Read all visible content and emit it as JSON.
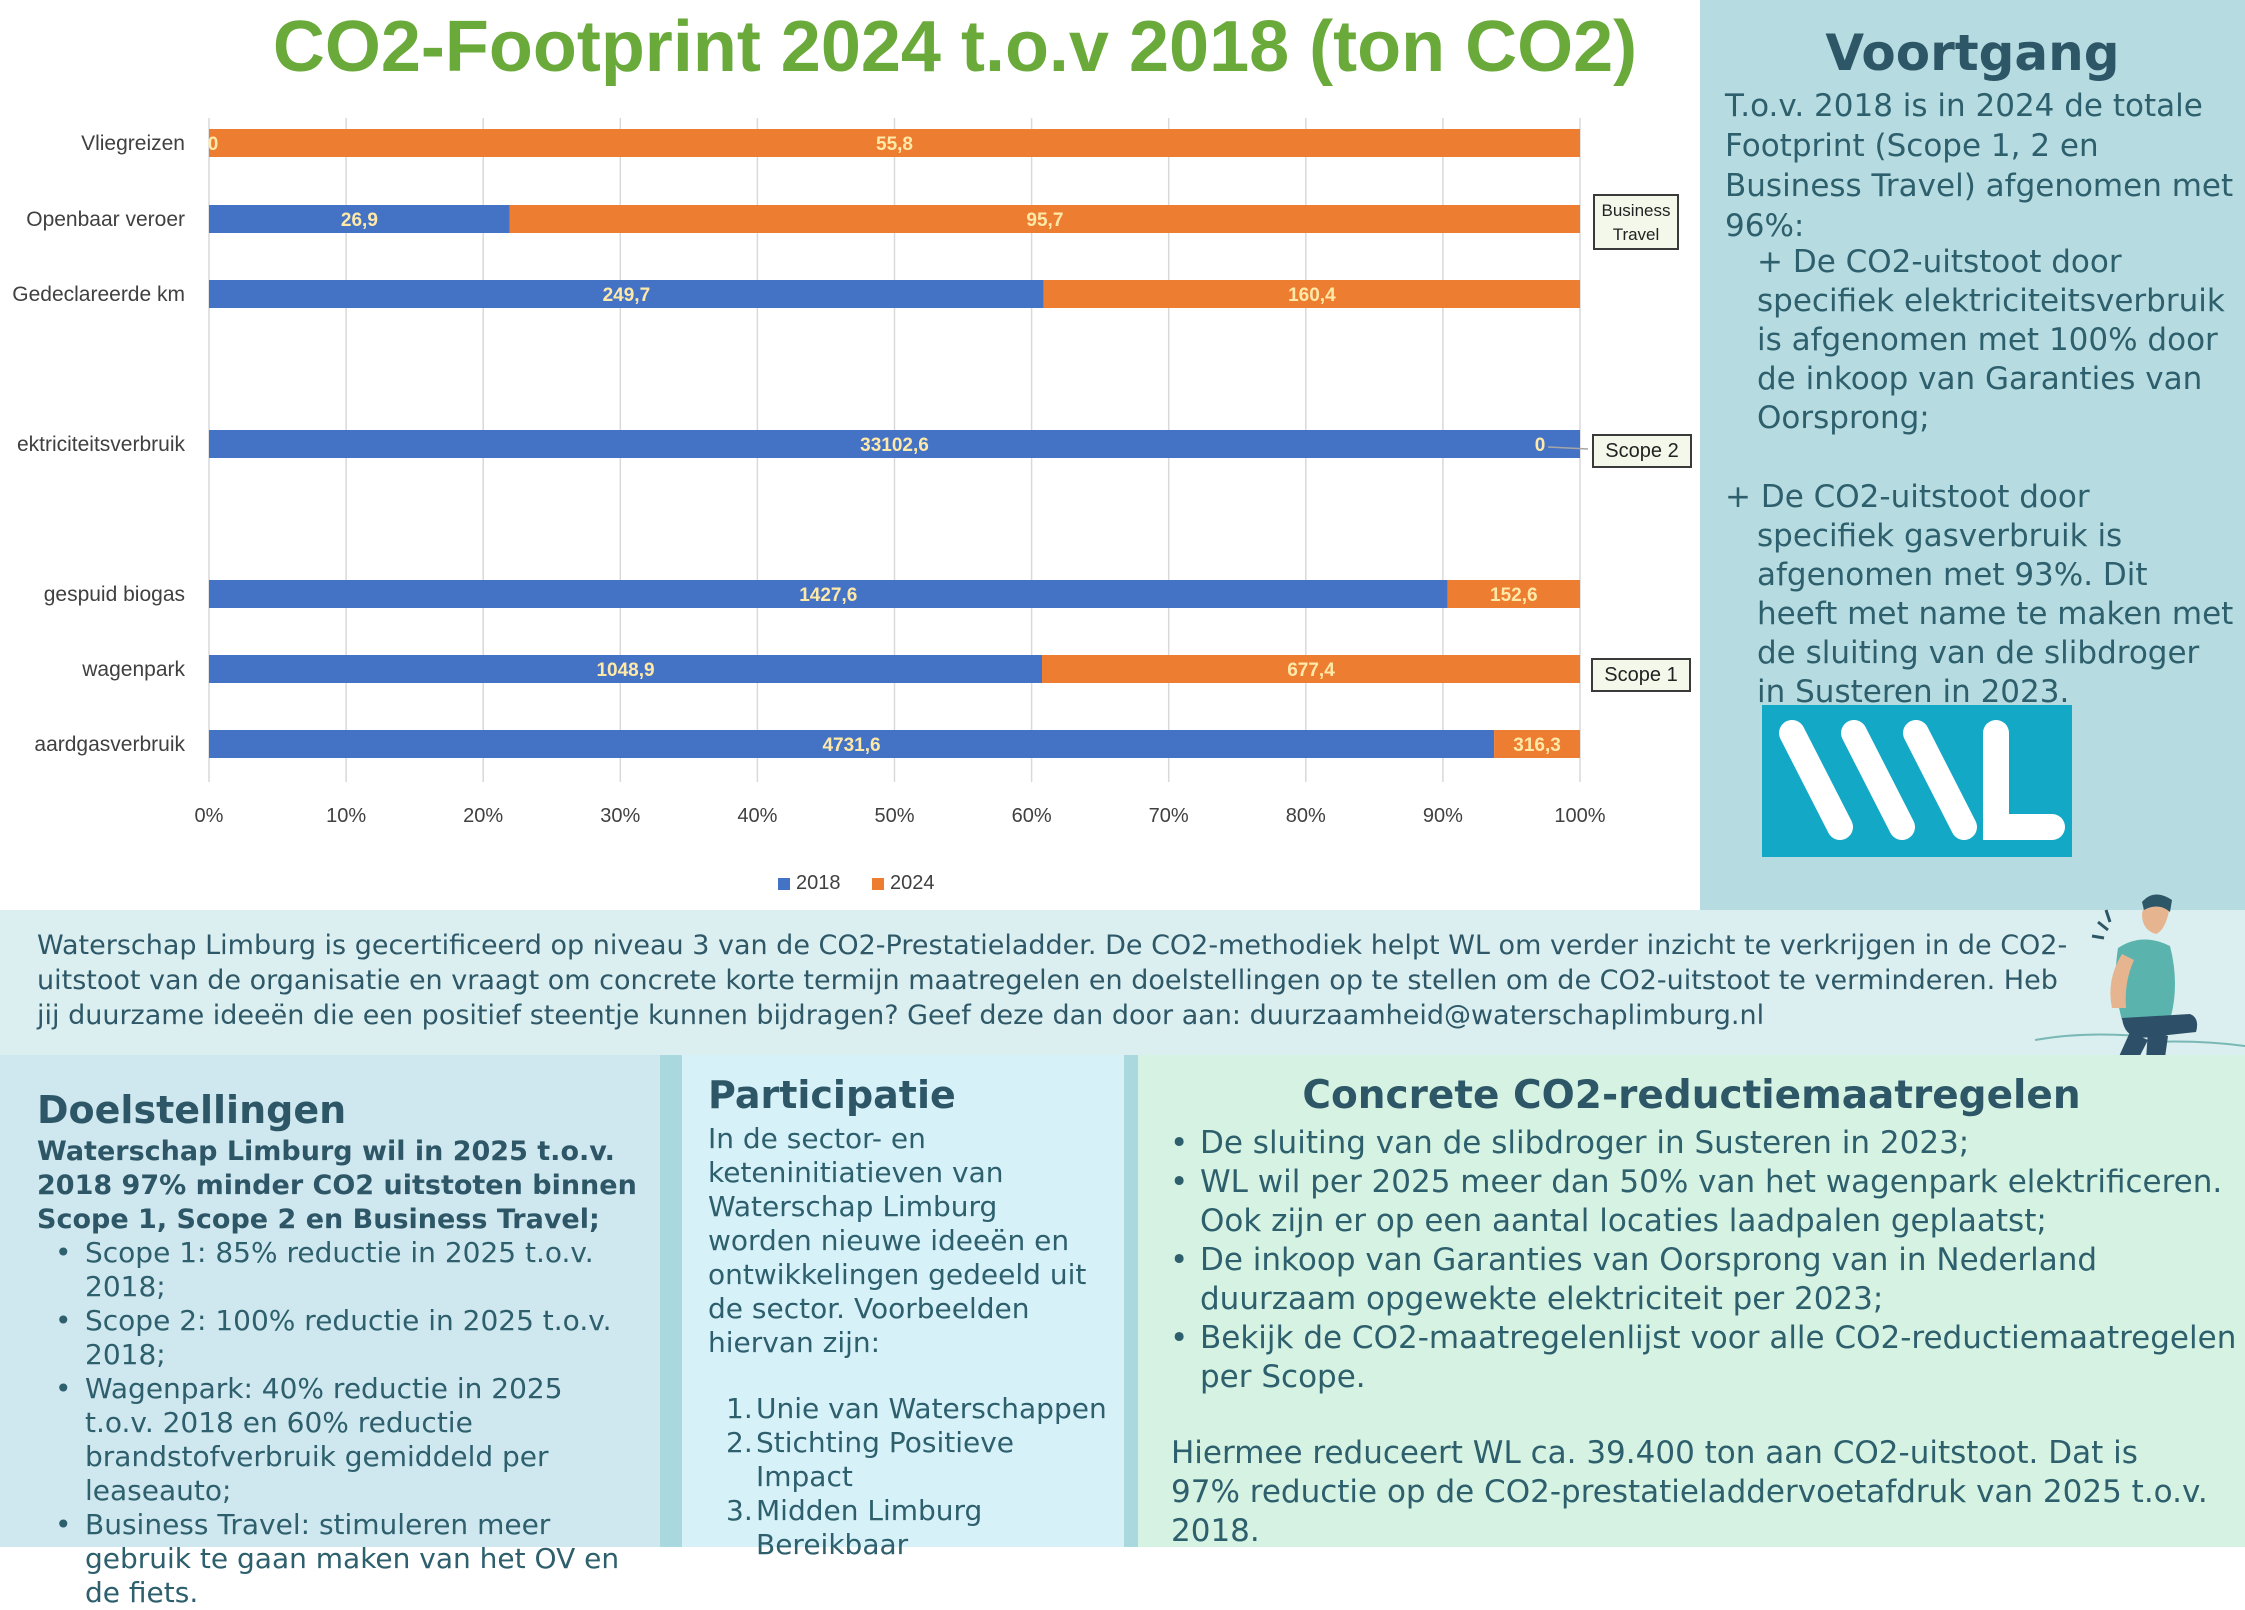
{
  "chart_data": {
    "type": "bar",
    "orientation": "horizontal",
    "stacked": "percent",
    "title": "CO2-Footprint 2024 t.o.v 2018 (ton CO2)",
    "categories": [
      "Vliegreizen",
      "Openbaar veroer",
      "Gedeclareerde km",
      "ektriciteitsverbruik",
      "gespuid biogas",
      "wagenpark",
      "aardgasverbruik"
    ],
    "series": [
      {
        "name": "2018",
        "color": "#4472c4",
        "values": [
          0,
          26.9,
          249.7,
          33102.6,
          1427.6,
          1048.9,
          4731.6
        ],
        "labels": [
          "0",
          "26,9",
          "249,7",
          "33102,6",
          "1427,6",
          "1048,9",
          "4731,6"
        ]
      },
      {
        "name": "2024",
        "color": "#ed7d31",
        "values": [
          55.8,
          95.7,
          160.4,
          0,
          152.6,
          677.4,
          316.3
        ],
        "labels": [
          "55,8",
          "95,7",
          "160,4",
          "0",
          "152,6",
          "677,4",
          "316,3"
        ]
      }
    ],
    "x_ticks": [
      "0%",
      "10%",
      "20%",
      "30%",
      "40%",
      "50%",
      "60%",
      "70%",
      "80%",
      "90%",
      "100%"
    ],
    "xlim": [
      0,
      100
    ],
    "grid": "vertical",
    "legend": "bottom",
    "groups": [
      {
        "label": "Business Travel",
        "categories": [
          "Vliegreizen",
          "Openbaar veroer",
          "Gedeclareerde km"
        ]
      },
      {
        "label": "Scope 2",
        "categories": [
          "ektriciteitsverbruik"
        ]
      },
      {
        "label": "Scope 1",
        "categories": [
          "gespuid biogas",
          "wagenpark",
          "aardgasverbruik"
        ]
      }
    ]
  },
  "voortgang": {
    "title": "Voortgang",
    "intro": "T.o.v. 2018 is in 2024 de totale Footprint (Scope 1, 2 en Business Travel) afgenomen met 96%:",
    "bullet_1": "+  De CO2-uitstoot door specifiek elektriciteitsverbruik is afgenomen met 100% door de inkoop van Garanties van Oorsprong;",
    "bullet_2": "+  De CO2-uitstoot door specifiek gasverbruik is afgenomen met 93%. Dit heeft met name te maken met de sluiting van de slibdroger in Susteren in 2023.",
    "logo_text": "WL",
    "logo_color": "#13a8c6"
  },
  "info": {
    "text": "Waterschap Limburg is gecertificeerd op niveau 3 van de CO2-Prestatieladder. De CO2-methodiek helpt WL om verder inzicht te verkrijgen in de CO2-uitstoot van de organisatie en vraagt om concrete korte termijn maatregelen en doelstellingen op te stellen om de CO2-uitstoot te verminderen. Heb jij duurzame ideeën die een positief steentje kunnen bijdragen? Geef deze dan door aan: duurzaamheid@waterschaplimburg.nl"
  },
  "doelstellingen": {
    "title": "Doelstellingen",
    "lead": "Waterschap Limburg wil in 2025 t.o.v. 2018 97% minder CO2 uitstoten binnen Scope 1, Scope 2 en Business Travel;",
    "items": [
      "Scope 1: 85% reductie in 2025 t.o.v. 2018;",
      "Scope 2: 100% reductie in 2025 t.o.v. 2018;",
      "Wagenpark: 40% reductie in 2025 t.o.v. 2018 en 60% reductie brandstofverbruik gemiddeld per leaseauto;",
      "Business Travel: stimuleren meer gebruik te gaan maken van het OV en de fiets."
    ]
  },
  "participatie": {
    "title": "Participatie",
    "text": "In de sector- en keteninitiatieven van Waterschap Limburg worden nieuwe ideeën en ontwikkelingen gedeeld uit de sector. Voorbeelden hiervan zijn:",
    "items": [
      "Unie van Waterschappen",
      "Stichting Positieve Impact",
      "Midden Limburg Bereikbaar"
    ],
    "numbers": [
      "1.",
      "2.",
      "3."
    ]
  },
  "concreet": {
    "title": "Concrete CO2-reductiemaatregelen",
    "items": [
      "De sluiting van de slibdroger in Susteren in 2023;",
      "WL wil per 2025 meer dan 50% van het wagenpark elektrificeren. Ook zijn er op een aantal locaties laadpalen geplaatst;",
      "De inkoop van Garanties van Oorsprong van in Nederland duurzaam opgewekte elektriciteit per 2023;",
      "Bekijk de CO2-maatregelenlijst voor alle CO2-reductiemaatregelen per Scope."
    ],
    "closing_1": "Hiermee reduceert WL ca. 39.400 ton aan CO2-uitstoot. Dat is",
    "closing_2": "97% reductie op de CO2-prestatieladdervoetafdruk van 2025 t.o.v. 2018."
  }
}
